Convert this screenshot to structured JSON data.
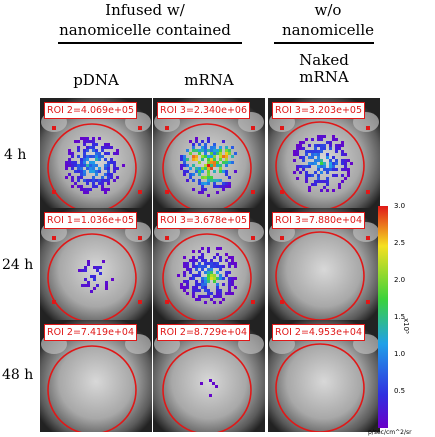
{
  "headers": {
    "infused_line1": "Infused w/",
    "infused_line2": "nanomicelle contained",
    "without_line1": "w/o",
    "without_line2": "nanomicelle"
  },
  "columns": [
    "pDNA",
    "mRNA",
    "Naked mRNA"
  ],
  "rows": [
    "4 h",
    "24 h",
    "48 h"
  ],
  "panels": [
    {
      "roi": "ROI 2=4.069e+05",
      "signal": "medium"
    },
    {
      "roi": "ROI 3=2.340e+06",
      "signal": "high"
    },
    {
      "roi": "ROI 3=3.203e+05",
      "signal": "medium"
    },
    {
      "roi": "ROI 1=1.036e+05",
      "signal": "low"
    },
    {
      "roi": "ROI 3=3.678e+05",
      "signal": "medium"
    },
    {
      "roi": "ROI 3=7.880e+04",
      "signal": "none"
    },
    {
      "roi": "ROI 2=7.419e+04",
      "signal": "none"
    },
    {
      "roi": "ROI 2=8.729e+04",
      "signal": "trace"
    },
    {
      "roi": "ROI 2=4.953e+04",
      "signal": "none"
    }
  ],
  "colorbar": {
    "ticks": [
      "3.0",
      "2.5",
      "2.0",
      "1.5",
      "1.0",
      "0.5"
    ],
    "exponent": "x10⁵",
    "units": "p/sec/cm^2/sr",
    "colors": [
      "#e01818",
      "#f5e020",
      "#3cd23c",
      "#20a0e8",
      "#3030e0",
      "#6a00c8"
    ]
  },
  "roi_color": "#e01818"
}
